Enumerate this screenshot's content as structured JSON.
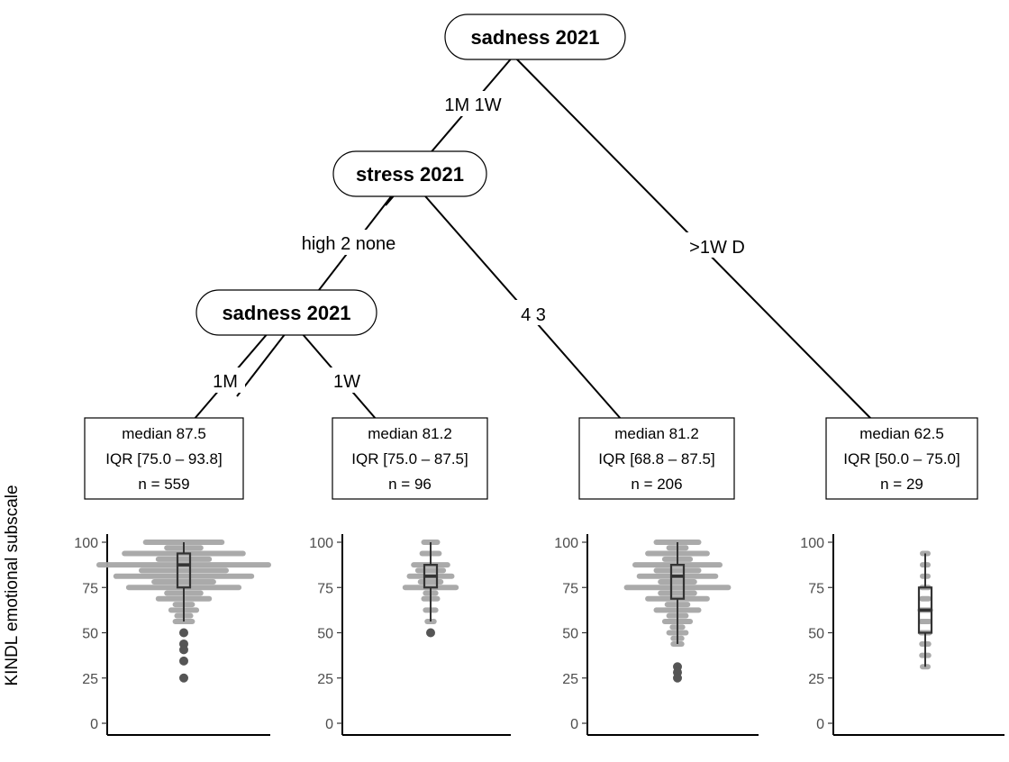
{
  "tree": {
    "nodes": [
      {
        "id": "n1",
        "label": "sadness 2021"
      },
      {
        "id": "n2",
        "label": "stress 2021"
      },
      {
        "id": "n3",
        "label": "sadness 2021"
      }
    ],
    "edges": [
      {
        "id": "e1",
        "label": "1M 1W"
      },
      {
        "id": "e2",
        "label": ">1W D"
      },
      {
        "id": "e3",
        "label": "high 2 none"
      },
      {
        "id": "e4",
        "label": "4 3"
      },
      {
        "id": "e5",
        "label": "1M"
      },
      {
        "id": "e6",
        "label": "1W"
      }
    ],
    "leaves": [
      {
        "median": "median 87.5",
        "iqr": "IQR [75.0 – 93.8]",
        "n": "n = 559"
      },
      {
        "median": "median 81.2",
        "iqr": "IQR [75.0 – 87.5]",
        "n": "n = 96"
      },
      {
        "median": "median 81.2",
        "iqr": "IQR [68.8 – 87.5]",
        "n": "n = 206"
      },
      {
        "median": "median 62.5",
        "iqr": "IQR [50.0 – 75.0]",
        "n": "n = 29"
      }
    ]
  },
  "chart_data": {
    "type": "box",
    "ylabel": "KINDL emotional subscale",
    "ylim": [
      0,
      100
    ],
    "yticks": [
      0,
      25,
      50,
      75,
      100
    ],
    "colors": {
      "point": "#a6a6a6",
      "outlier": "#555555",
      "box": "#333333"
    },
    "panels": [
      {
        "n": 559,
        "median": 87.5,
        "q1": 75.0,
        "q3": 93.8,
        "whisker_low": 56.2,
        "whisker_high": 100,
        "outliers": [
          50.0,
          43.8,
          40.6,
          34.4,
          25.0
        ],
        "strips": [
          {
            "y": 100,
            "w": 0.45
          },
          {
            "y": 96.9,
            "w": 0.2
          },
          {
            "y": 93.8,
            "w": 0.7
          },
          {
            "y": 90.6,
            "w": 0.3
          },
          {
            "y": 87.5,
            "w": 1.0
          },
          {
            "y": 84.4,
            "w": 0.5
          },
          {
            "y": 81.2,
            "w": 0.8
          },
          {
            "y": 78.1,
            "w": 0.35
          },
          {
            "y": 75.0,
            "w": 0.65
          },
          {
            "y": 71.9,
            "w": 0.2
          },
          {
            "y": 68.8,
            "w": 0.3
          },
          {
            "y": 65.6,
            "w": 0.1
          },
          {
            "y": 62.5,
            "w": 0.15
          },
          {
            "y": 59.4,
            "w": 0.08
          },
          {
            "y": 56.2,
            "w": 0.1
          }
        ]
      },
      {
        "n": 96,
        "median": 81.2,
        "q1": 75.0,
        "q3": 87.5,
        "whisker_low": 56.2,
        "whisker_high": 100,
        "outliers": [
          50.0
        ],
        "strips": [
          {
            "y": 100,
            "w": 0.08
          },
          {
            "y": 93.8,
            "w": 0.1
          },
          {
            "y": 87.5,
            "w": 0.2
          },
          {
            "y": 84.4,
            "w": 0.15
          },
          {
            "y": 81.2,
            "w": 0.25
          },
          {
            "y": 78.1,
            "w": 0.12
          },
          {
            "y": 75.0,
            "w": 0.3
          },
          {
            "y": 71.9,
            "w": 0.06
          },
          {
            "y": 68.8,
            "w": 0.08
          },
          {
            "y": 62.5,
            "w": 0.06
          },
          {
            "y": 56.2,
            "w": 0.04
          }
        ]
      },
      {
        "n": 206,
        "median": 81.2,
        "q1": 68.8,
        "q3": 87.5,
        "whisker_low": 43.8,
        "whisker_high": 100,
        "outliers": [
          31.2,
          28.1,
          25.0
        ],
        "strips": [
          {
            "y": 100,
            "w": 0.25
          },
          {
            "y": 96.9,
            "w": 0.1
          },
          {
            "y": 93.8,
            "w": 0.35
          },
          {
            "y": 90.6,
            "w": 0.15
          },
          {
            "y": 87.5,
            "w": 0.5
          },
          {
            "y": 84.4,
            "w": 0.25
          },
          {
            "y": 81.2,
            "w": 0.45
          },
          {
            "y": 78.1,
            "w": 0.2
          },
          {
            "y": 75.0,
            "w": 0.6
          },
          {
            "y": 71.9,
            "w": 0.2
          },
          {
            "y": 68.8,
            "w": 0.35
          },
          {
            "y": 65.6,
            "w": 0.12
          },
          {
            "y": 62.5,
            "w": 0.25
          },
          {
            "y": 59.4,
            "w": 0.1
          },
          {
            "y": 56.2,
            "w": 0.15
          },
          {
            "y": 53.1,
            "w": 0.06
          },
          {
            "y": 50.0,
            "w": 0.1
          },
          {
            "y": 46.9,
            "w": 0.05
          },
          {
            "y": 43.8,
            "w": 0.05
          }
        ]
      },
      {
        "n": 29,
        "median": 62.5,
        "q1": 50.0,
        "q3": 75.0,
        "whisker_low": 31.2,
        "whisker_high": 93.8,
        "outliers": [],
        "strips": [
          {
            "y": 93.8,
            "w": 0.03
          },
          {
            "y": 87.5,
            "w": 0.03
          },
          {
            "y": 81.2,
            "w": 0.03
          },
          {
            "y": 75.0,
            "w": 0.04
          },
          {
            "y": 68.8,
            "w": 0.04
          },
          {
            "y": 62.5,
            "w": 0.06
          },
          {
            "y": 56.2,
            "w": 0.05
          },
          {
            "y": 50.0,
            "w": 0.05
          },
          {
            "y": 43.8,
            "w": 0.04
          },
          {
            "y": 37.5,
            "w": 0.04
          },
          {
            "y": 31.2,
            "w": 0.03
          }
        ]
      }
    ]
  }
}
